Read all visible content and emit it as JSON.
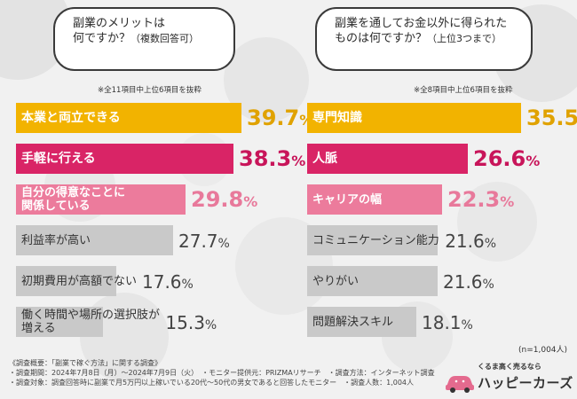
{
  "colors": {
    "gold": "#f2b300",
    "magenta": "#d92466",
    "pink": "#ec7b9c",
    "gray": "#c9c9c9",
    "gold_text": "#e0a200",
    "magenta_text": "#c8155a",
    "pink_text": "#e8799b"
  },
  "chart_data": [
    {
      "type": "bar",
      "question_lines": [
        "副業のメリットは",
        "何ですか？"
      ],
      "question_suffix": "（複数回答可）",
      "note": "※全11項目中上位6項目を抜粋",
      "categories": [
        "本業と両立できる",
        "手軽に行える",
        "自分の得意なことに関係している",
        "利益率が高い",
        "初期費用が高額でない",
        "働く時間や場所の選択肢が増える"
      ],
      "label_lines": [
        [
          "本業と両立できる"
        ],
        [
          "手軽に行える"
        ],
        [
          "自分の得意なことに",
          "関係している"
        ],
        [
          "利益率が高い"
        ],
        [
          "初期費用が高額でない"
        ],
        [
          "働く時間や場所の選択肢が",
          "増える"
        ]
      ],
      "values": [
        39.7,
        38.3,
        29.8,
        27.7,
        17.6,
        15.3
      ],
      "value_labels": [
        "39.7",
        "38.3",
        "29.8",
        "27.7",
        "17.6",
        "15.3"
      ],
      "unit": "%",
      "bar_colors": [
        "#f2b300",
        "#d92466",
        "#ec7b9c",
        "#c9c9c9",
        "#c9c9c9",
        "#c9c9c9"
      ]
    },
    {
      "type": "bar",
      "question_lines": [
        "副業を通してお金以外に得られた",
        "ものは何ですか？"
      ],
      "question_suffix": "（上位3つまで）",
      "note": "※全8項目中上位6項目を抜粋",
      "categories": [
        "専門知識",
        "人脈",
        "キャリアの幅",
        "コミュニケーション能力",
        "やりがい",
        "問題解決スキル"
      ],
      "label_lines": [
        [
          "専門知識"
        ],
        [
          "人脈"
        ],
        [
          "キャリアの幅"
        ],
        [
          "コミュニケーション能力"
        ],
        [
          "やりがい"
        ],
        [
          "問題解決スキル"
        ]
      ],
      "values": [
        35.5,
        26.6,
        22.3,
        21.6,
        21.6,
        18.1
      ],
      "value_labels": [
        "35.5",
        "26.6",
        "22.3",
        "21.6",
        "21.6",
        "18.1"
      ],
      "unit": "%",
      "bar_colors": [
        "#f2b300",
        "#d92466",
        "#ec7b9c",
        "#c9c9c9",
        "#c9c9c9",
        "#c9c9c9"
      ]
    }
  ],
  "n_label": "(n=1,004人)",
  "footer": {
    "line1": "《調査概要：「副業で稼ぐ方法」に関する調査》",
    "line2": "・調査期間：2024年7月8日（月）〜2024年7月9日（火）　・モニター提供元：PRIZMAリサーチ　・調査方法：インターネット調査",
    "line3": "・調査対象：調査回答時に副業で月5万円以上稼いでいる20代〜50代の男女であると回答したモニター　・調査人数：1,004人"
  },
  "logo": {
    "tagline": "くるま高く売るなら",
    "name": "ハッピーカーズ"
  }
}
